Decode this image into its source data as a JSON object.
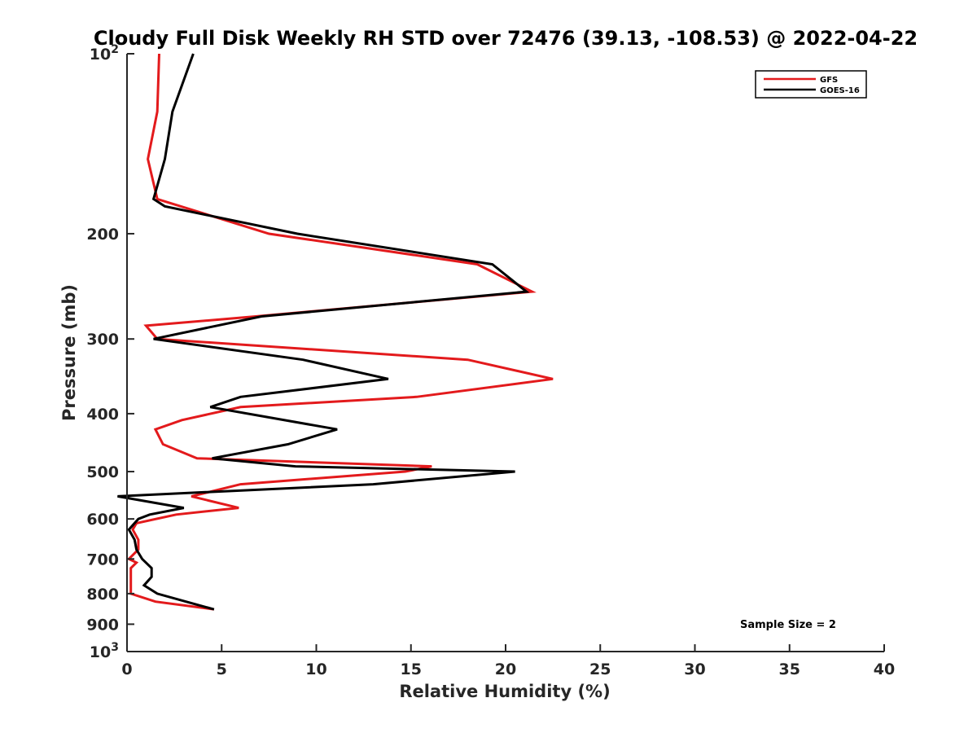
{
  "chart_data": {
    "type": "line",
    "title": "Cloudy Full Disk Weekly RH STD over 72476 (39.13, -108.53) @ 2022-04-22",
    "xlabel": "Relative Humidity (%)",
    "ylabel": "Pressure (mb)",
    "xlim": [
      0,
      40
    ],
    "ylim": [
      100,
      1000
    ],
    "yscale": "log",
    "y_reversed": true,
    "x_ticks": [
      "0",
      "5",
      "10",
      "15",
      "20",
      "25",
      "30",
      "35",
      "40"
    ],
    "y_ticks": [
      {
        "value": 100,
        "base": "10",
        "exp": "2"
      },
      {
        "value": 200,
        "label": "200"
      },
      {
        "value": 300,
        "label": "300"
      },
      {
        "value": 400,
        "label": "400"
      },
      {
        "value": 500,
        "label": "500"
      },
      {
        "value": 600,
        "label": "600"
      },
      {
        "value": 700,
        "label": "700"
      },
      {
        "value": 800,
        "label": "800"
      },
      {
        "value": 900,
        "label": "900"
      },
      {
        "value": 1000,
        "base": "10",
        "exp": "3"
      }
    ],
    "grid": false,
    "legend_position": "top-right",
    "annotation": "Sample Size = 2",
    "series": [
      {
        "name": "GFS",
        "color": "#e31a1c",
        "points": [
          [
            1.7,
            100
          ],
          [
            1.6,
            125
          ],
          [
            1.1,
            150
          ],
          [
            1.6,
            175
          ],
          [
            7.5,
            200
          ],
          [
            18.5,
            225
          ],
          [
            21.4,
            250
          ],
          [
            6.8,
            275
          ],
          [
            1.0,
            285
          ],
          [
            1.6,
            300
          ],
          [
            18.0,
            325
          ],
          [
            22.5,
            350
          ],
          [
            15.3,
            375
          ],
          [
            6.0,
            390
          ],
          [
            2.9,
            410
          ],
          [
            1.5,
            425
          ],
          [
            1.9,
            450
          ],
          [
            3.7,
            475
          ],
          [
            16.1,
            490
          ],
          [
            14.7,
            500
          ],
          [
            6.0,
            525
          ],
          [
            3.4,
            550
          ],
          [
            5.9,
            575
          ],
          [
            2.6,
            590
          ],
          [
            0.5,
            610
          ],
          [
            0.3,
            625
          ],
          [
            0.6,
            650
          ],
          [
            0.6,
            675
          ],
          [
            0.1,
            700
          ],
          [
            0.5,
            710
          ],
          [
            0.2,
            725
          ],
          [
            0.2,
            750
          ],
          [
            0.2,
            775
          ],
          [
            0.2,
            800
          ],
          [
            1.5,
            825
          ],
          [
            4.6,
            850
          ]
        ]
      },
      {
        "name": "GOES-16",
        "color": "#000000",
        "points": [
          [
            3.5,
            100
          ],
          [
            2.4,
            125
          ],
          [
            2.0,
            150
          ],
          [
            1.4,
            175
          ],
          [
            2.0,
            180
          ],
          [
            9.0,
            200
          ],
          [
            19.3,
            225
          ],
          [
            21.1,
            250
          ],
          [
            7.1,
            275
          ],
          [
            1.4,
            300
          ],
          [
            9.3,
            325
          ],
          [
            13.8,
            350
          ],
          [
            6.0,
            375
          ],
          [
            4.4,
            390
          ],
          [
            11.1,
            425
          ],
          [
            8.5,
            450
          ],
          [
            4.5,
            475
          ],
          [
            8.9,
            490
          ],
          [
            20.5,
            500
          ],
          [
            13.0,
            525
          ],
          [
            -0.5,
            550
          ],
          [
            3.0,
            575
          ],
          [
            1.2,
            590
          ],
          [
            0.6,
            600
          ],
          [
            0.1,
            625
          ],
          [
            0.4,
            650
          ],
          [
            0.5,
            675
          ],
          [
            0.8,
            700
          ],
          [
            1.3,
            725
          ],
          [
            1.3,
            750
          ],
          [
            0.9,
            775
          ],
          [
            1.6,
            800
          ],
          [
            4.6,
            850
          ]
        ]
      }
    ]
  }
}
